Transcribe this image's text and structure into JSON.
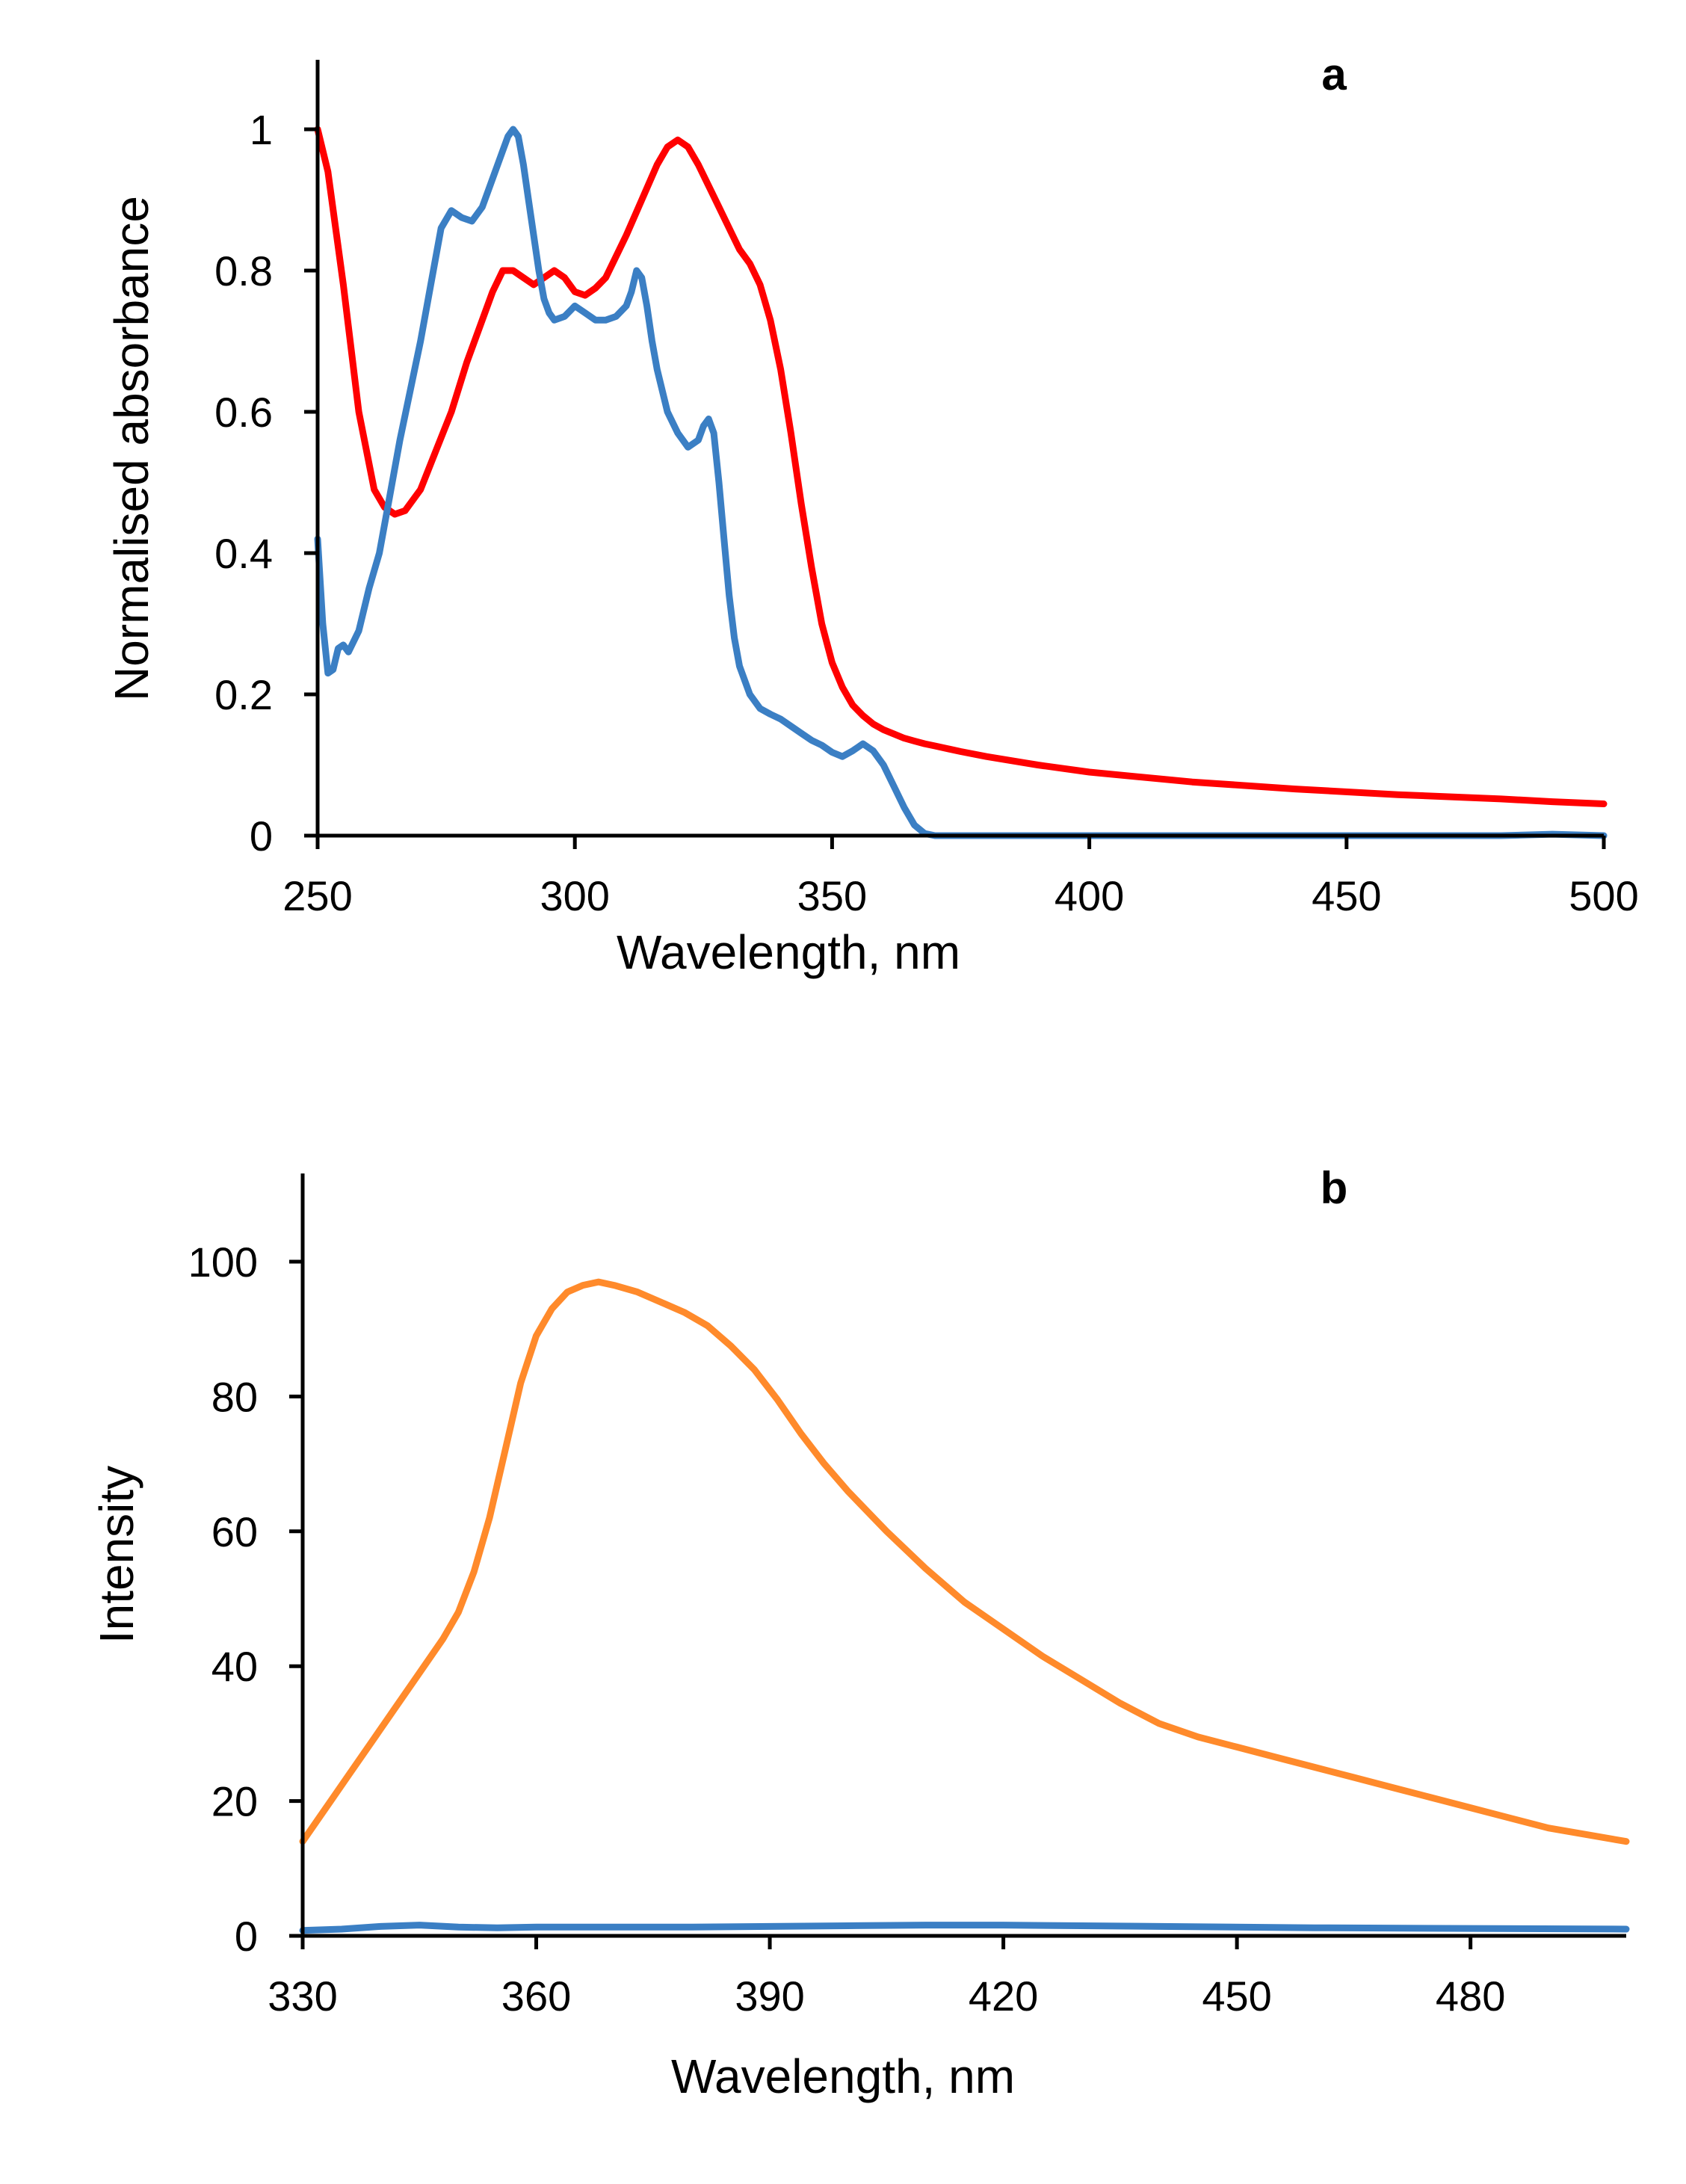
{
  "chart_data": [
    {
      "type": "line",
      "panel_label": "a",
      "xlabel": "Wavelength, nm",
      "ylabel": "Normalised absorbance",
      "xlim": [
        250,
        500
      ],
      "ylim": [
        0,
        1.1
      ],
      "x_ticks": [
        250,
        300,
        350,
        400,
        450,
        500
      ],
      "y_ticks": [
        0,
        0.2,
        0.4,
        0.6,
        0.8,
        1
      ],
      "x_tick_labels": [
        "250",
        "300",
        "350",
        "400",
        "450",
        "500"
      ],
      "y_tick_labels": [
        "0",
        "0.2",
        "0.4",
        "0.6",
        "0.8",
        "1"
      ],
      "grid": false,
      "legend": "none",
      "series": [
        {
          "name": "red-series",
          "color": "#ff0000",
          "x": [
            250,
            252,
            255,
            258,
            261,
            263,
            265,
            267,
            270,
            273,
            276,
            279,
            282,
            284,
            286,
            288,
            290,
            292,
            294,
            296,
            298,
            300,
            302,
            304,
            306,
            308,
            310,
            313,
            316,
            318,
            320,
            322,
            324,
            326,
            328,
            330,
            332,
            334,
            336,
            338,
            340,
            342,
            344,
            346,
            348,
            350,
            352,
            354,
            356,
            358,
            360,
            362,
            364,
            366,
            368,
            370,
            375,
            380,
            390,
            400,
            420,
            440,
            460,
            480,
            490,
            500
          ],
          "values": [
            1.0,
            0.94,
            0.78,
            0.6,
            0.49,
            0.465,
            0.455,
            0.46,
            0.49,
            0.545,
            0.6,
            0.67,
            0.73,
            0.77,
            0.8,
            0.8,
            0.79,
            0.78,
            0.79,
            0.8,
            0.79,
            0.77,
            0.765,
            0.775,
            0.79,
            0.82,
            0.85,
            0.9,
            0.95,
            0.975,
            0.985,
            0.975,
            0.95,
            0.92,
            0.89,
            0.86,
            0.83,
            0.81,
            0.78,
            0.73,
            0.66,
            0.57,
            0.47,
            0.38,
            0.3,
            0.245,
            0.21,
            0.185,
            0.17,
            0.158,
            0.15,
            0.144,
            0.138,
            0.134,
            0.13,
            0.127,
            0.119,
            0.112,
            0.1,
            0.09,
            0.076,
            0.066,
            0.058,
            0.052,
            0.048,
            0.045
          ]
        },
        {
          "name": "blue-series",
          "color": "#3b7fc4",
          "x": [
            250,
            251,
            252,
            253,
            254,
            255,
            256,
            258,
            260,
            262,
            264,
            266,
            268,
            270,
            272,
            274,
            276,
            278,
            280,
            282,
            284,
            286,
            287,
            288,
            289,
            290,
            291,
            292,
            293,
            294,
            295,
            296,
            298,
            300,
            302,
            304,
            306,
            308,
            310,
            311,
            312,
            313,
            314,
            315,
            316,
            317,
            318,
            320,
            322,
            324,
            325,
            326,
            327,
            328,
            329,
            330,
            331,
            332,
            334,
            336,
            338,
            340,
            342,
            344,
            346,
            348,
            350,
            352,
            354,
            356,
            358,
            360,
            362,
            364,
            366,
            368,
            370,
            380,
            400,
            420,
            450,
            480,
            490,
            500
          ],
          "values": [
            0.42,
            0.3,
            0.23,
            0.235,
            0.265,
            0.27,
            0.26,
            0.29,
            0.35,
            0.4,
            0.48,
            0.56,
            0.63,
            0.7,
            0.78,
            0.86,
            0.885,
            0.875,
            0.87,
            0.89,
            0.93,
            0.97,
            0.99,
            1.0,
            0.99,
            0.95,
            0.9,
            0.85,
            0.8,
            0.76,
            0.74,
            0.73,
            0.735,
            0.75,
            0.74,
            0.73,
            0.73,
            0.735,
            0.75,
            0.77,
            0.8,
            0.79,
            0.75,
            0.7,
            0.66,
            0.63,
            0.6,
            0.57,
            0.55,
            0.56,
            0.58,
            0.59,
            0.57,
            0.5,
            0.42,
            0.34,
            0.28,
            0.24,
            0.2,
            0.18,
            0.172,
            0.165,
            0.155,
            0.145,
            0.135,
            0.128,
            0.118,
            0.112,
            0.12,
            0.13,
            0.12,
            0.1,
            0.07,
            0.04,
            0.015,
            0.003,
            0.0,
            0.0,
            0.0,
            0.0,
            0.0,
            0.0,
            0.002,
            0.0
          ]
        }
      ]
    },
    {
      "type": "line",
      "panel_label": "b",
      "xlabel": "Wavelength, nm",
      "ylabel": "Intensity",
      "xlim": [
        330,
        500
      ],
      "ylim": [
        0,
        110
      ],
      "x_ticks": [
        330,
        360,
        390,
        420,
        450,
        480
      ],
      "y_ticks": [
        0,
        20,
        40,
        60,
        80,
        100
      ],
      "x_tick_labels": [
        "330",
        "360",
        "390",
        "420",
        "450",
        "480"
      ],
      "y_tick_labels": [
        "0",
        "20",
        "40",
        "60",
        "80",
        "100"
      ],
      "grid": false,
      "legend": "none",
      "series": [
        {
          "name": "orange-series",
          "color": "#ff8a2b",
          "x": [
            330,
            333,
            336,
            339,
            342,
            345,
            348,
            350,
            352,
            354,
            356,
            358,
            360,
            362,
            364,
            366,
            368,
            370,
            373,
            376,
            379,
            382,
            385,
            388,
            391,
            394,
            397,
            400,
            405,
            410,
            415,
            420,
            425,
            430,
            435,
            440,
            445,
            450,
            455,
            460,
            465,
            470,
            475,
            480,
            485,
            490,
            495,
            500
          ],
          "values": [
            14,
            19,
            24,
            29,
            34,
            39,
            44,
            48,
            54,
            62,
            72,
            82,
            89,
            93,
            95.5,
            96.5,
            97,
            96.5,
            95.5,
            94,
            92.5,
            90.5,
            87.5,
            84,
            79.5,
            74.5,
            70,
            66,
            60,
            54.5,
            49.5,
            45.5,
            41.5,
            38,
            34.5,
            31.5,
            29.5,
            28,
            26.5,
            25,
            23.5,
            22,
            20.5,
            19,
            17.5,
            16,
            15,
            14
          ]
        },
        {
          "name": "blue-series",
          "color": "#3b7fc4",
          "x": [
            330,
            335,
            340,
            345,
            350,
            355,
            360,
            380,
            400,
            410,
            420,
            430,
            440,
            460,
            480,
            500
          ],
          "values": [
            0.8,
            1.0,
            1.4,
            1.6,
            1.3,
            1.2,
            1.3,
            1.3,
            1.5,
            1.6,
            1.6,
            1.5,
            1.4,
            1.2,
            1.1,
            1.0
          ]
        }
      ]
    }
  ]
}
